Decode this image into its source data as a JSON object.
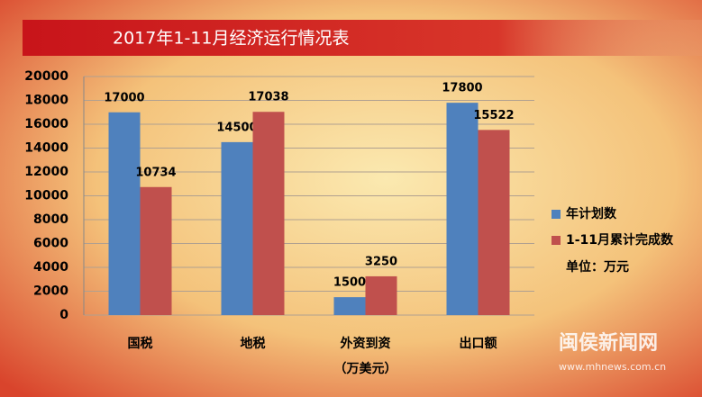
{
  "chart_data": {
    "type": "bar",
    "title": "2017年1-11月经济运行情况表",
    "categories": [
      "国税",
      "地税",
      "外资到资",
      "出口额"
    ],
    "category_note": "（万美元）",
    "series": [
      {
        "name": "年计划数",
        "color": "#4f81bd",
        "values": [
          17000,
          14500,
          1500,
          17800
        ]
      },
      {
        "name": "1-11月累计完成数",
        "color": "#c0504d",
        "values": [
          10734,
          17038,
          3250,
          15522
        ]
      }
    ],
    "ylim": [
      0,
      20000
    ],
    "yticks": [
      0,
      2000,
      4000,
      6000,
      8000,
      10000,
      12000,
      14000,
      16000,
      18000,
      20000
    ],
    "grid": true,
    "unit_note": "单位：万元",
    "watermark": "闽侯新闻网",
    "watermark_url": "www.mhnews.com.cn"
  }
}
